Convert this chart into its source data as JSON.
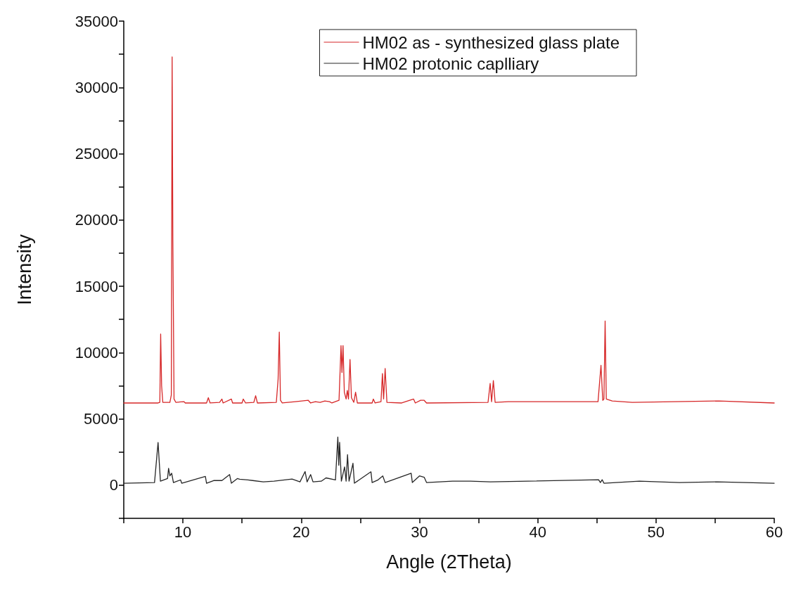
{
  "chart_data": {
    "type": "line",
    "xlabel": "Angle (2Theta)",
    "ylabel": "Intensity",
    "xlim": [
      5,
      60
    ],
    "ylim": [
      -2500,
      35000
    ],
    "xticks": [
      {
        "value": 5,
        "label": null
      },
      10,
      {
        "value": 15,
        "label": null
      },
      20,
      {
        "value": 25,
        "label": null
      },
      30,
      {
        "value": 35,
        "label": null
      },
      40,
      {
        "value": 45,
        "label": null
      },
      50,
      {
        "value": 55,
        "label": null
      },
      60
    ],
    "yticks": [
      {
        "value": -2500,
        "label": null
      },
      0,
      {
        "value": 2500,
        "label": null
      },
      5000,
      {
        "value": 7500,
        "label": null
      },
      10000,
      {
        "value": 12500,
        "label": null
      },
      15000,
      {
        "value": 17500,
        "label": null
      },
      20000,
      {
        "value": 22500,
        "label": null
      },
      25000,
      {
        "value": 27500,
        "label": null
      },
      30000,
      {
        "value": 32500,
        "label": null
      },
      35000
    ],
    "grid": false,
    "legend": "top right",
    "marker": "none",
    "line_style": "solid",
    "series": [
      {
        "name": "HM02 as - synthesized glass plate",
        "color": "#d62728",
        "x": [
          5,
          7.9,
          8.05,
          8.12,
          8.2,
          8.3,
          8.9,
          9.02,
          9.09,
          9.15,
          9.25,
          9.4,
          10.1,
          10.2,
          12.0,
          12.15,
          12.3,
          13.1,
          13.3,
          13.4,
          14.1,
          14.2,
          15.0,
          15.1,
          15.3,
          16.0,
          16.15,
          16.3,
          17.9,
          18.05,
          18.15,
          18.25,
          18.4,
          19.5,
          20.6,
          20.8,
          21.2,
          21.6,
          22,
          22.4,
          22.6,
          23.2,
          23.37,
          23.45,
          23.54,
          23.65,
          23.8,
          23.9,
          24.0,
          24.13,
          24.25,
          24.45,
          24.6,
          24.75,
          26.0,
          26.1,
          26.25,
          26.75,
          26.87,
          26.97,
          27.1,
          27.25,
          28.5,
          29.5,
          29.65,
          30.1,
          30.4,
          30.6,
          35.8,
          35.98,
          36.1,
          36.25,
          36.4,
          37.5,
          38.2,
          45.1,
          45.35,
          45.5,
          45.6,
          45.7,
          45.8,
          46.3,
          48,
          55.35,
          60
        ],
        "values": [
          6200,
          6200,
          6250,
          11400,
          7500,
          6250,
          6250,
          6800,
          32300,
          18500,
          6500,
          6250,
          6300,
          6200,
          6200,
          6600,
          6200,
          6250,
          6500,
          6200,
          6500,
          6200,
          6200,
          6500,
          6200,
          6250,
          6750,
          6200,
          6250,
          8000,
          11550,
          6400,
          6200,
          6300,
          6400,
          6200,
          6300,
          6250,
          6350,
          6300,
          6200,
          6400,
          10530,
          8500,
          10530,
          7000,
          6500,
          7150,
          6500,
          9480,
          6600,
          6250,
          7010,
          6200,
          6200,
          6500,
          6200,
          6300,
          8420,
          6500,
          8800,
          6250,
          6200,
          6500,
          6200,
          6400,
          6400,
          6200,
          6250,
          7680,
          6300,
          7890,
          6250,
          6300,
          6300,
          6300,
          9040,
          6400,
          6500,
          12380,
          6500,
          6350,
          6250,
          6350,
          6200
        ]
      },
      {
        "name": "HM02 protonic caplliary",
        "color": "#262626",
        "x": [
          5,
          7.6,
          7.9,
          8.1,
          8.7,
          8.79,
          8.9,
          9.05,
          9.2,
          9.8,
          9.9,
          11.9,
          12.0,
          12.6,
          13.3,
          13.95,
          14.1,
          14.6,
          14.8,
          15.5,
          15.9,
          16.8,
          17.7,
          19.23,
          19.9,
          20.33,
          20.5,
          20.8,
          21.0,
          21.7,
          22.1,
          22.9,
          23.1,
          23.18,
          23.25,
          23.4,
          23.67,
          23.8,
          23.92,
          24.05,
          24.38,
          24.5,
          25.9,
          26.0,
          26.5,
          26.9,
          27.1,
          29.3,
          29.4,
          30.0,
          30.4,
          30.6,
          32.8,
          34.3,
          36.0,
          45.15,
          45.3,
          45.45,
          45.6,
          48.6,
          52,
          55.2,
          60
        ],
        "values": [
          150,
          200,
          3220,
          300,
          500,
          1270,
          700,
          900,
          200,
          400,
          150,
          660,
          150,
          350,
          350,
          800,
          150,
          500,
          450,
          400,
          350,
          250,
          300,
          460,
          250,
          1030,
          250,
          800,
          250,
          300,
          550,
          400,
          3630,
          1500,
          3230,
          300,
          1380,
          300,
          2300,
          300,
          1650,
          150,
          1010,
          200,
          400,
          700,
          200,
          900,
          200,
          700,
          600,
          200,
          300,
          300,
          250,
          410,
          200,
          410,
          150,
          300,
          200,
          250,
          150
        ]
      }
    ]
  }
}
